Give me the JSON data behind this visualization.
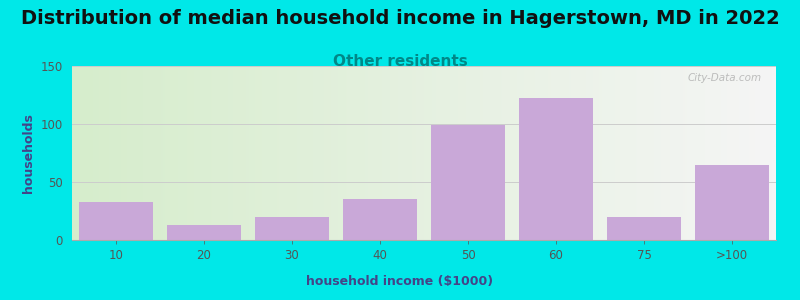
{
  "title": "Distribution of median household income in Hagerstown, MD in 2022",
  "subtitle": "Other residents",
  "xlabel": "household income ($1000)",
  "ylabel": "households",
  "categories": [
    "10",
    "20",
    "30",
    "40",
    "50",
    "60",
    "75",
    ">100"
  ],
  "values": [
    33,
    13,
    20,
    35,
    99,
    122,
    20,
    65
  ],
  "bar_color": "#c9a8d8",
  "background_color": "#00e8e8",
  "plot_bg_gradient_left": "#d6edcc",
  "plot_bg_gradient_right": "#f5f5f5",
  "ylim": [
    0,
    150
  ],
  "yticks": [
    0,
    50,
    100,
    150
  ],
  "title_fontsize": 14,
  "subtitle_fontsize": 11,
  "subtitle_color": "#008888",
  "axis_label_fontsize": 9,
  "tick_fontsize": 8.5,
  "watermark": "City-Data.com",
  "grid_color": "#cccccc",
  "tick_color": "#555555",
  "title_color": "#111111",
  "xlabel_color": "#444488",
  "ylabel_color": "#444488"
}
